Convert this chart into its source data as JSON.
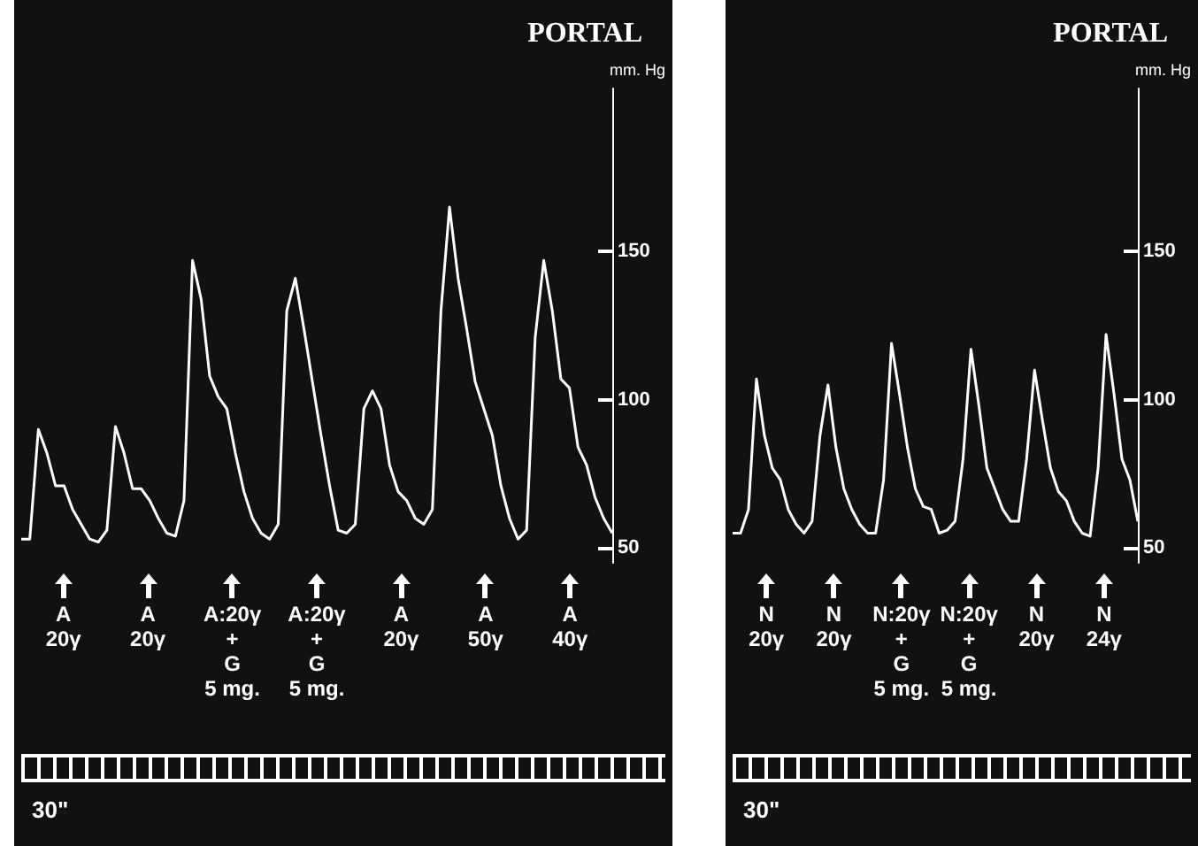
{
  "chart_data": [
    {
      "type": "line",
      "title": "PORTAL",
      "ylabel": "mm. Hg",
      "color": "#ffffff",
      "ylim": [
        45,
        205
      ],
      "yticks": [
        50,
        100,
        150
      ],
      "tick_labels": "y",
      "categories": [
        null,
        null,
        null,
        null,
        null,
        null,
        null,
        null,
        null,
        null,
        null,
        null,
        null,
        null,
        null,
        null,
        null,
        null,
        null,
        null,
        null,
        null,
        null,
        null,
        null,
        null,
        null,
        null,
        null,
        null,
        null,
        null,
        null,
        null,
        null,
        null,
        null,
        null,
        null,
        null,
        null,
        null,
        null,
        null,
        null,
        null,
        null,
        null,
        null,
        null,
        null,
        null,
        null,
        null,
        null,
        null,
        null,
        null,
        null,
        null,
        null,
        null,
        null,
        null,
        null,
        null,
        null,
        null,
        null,
        null
      ],
      "values": [
        53,
        53,
        90,
        82,
        71,
        71,
        63,
        58,
        53,
        52,
        56,
        91,
        82,
        70,
        70,
        66,
        60,
        55,
        54,
        66,
        147,
        134,
        108,
        101,
        97,
        82,
        69,
        60,
        55,
        53,
        58,
        130,
        141,
        124,
        106,
        88,
        71,
        56,
        55,
        58,
        97,
        103,
        97,
        78,
        69,
        66,
        60,
        58,
        63,
        130,
        165,
        141,
        124,
        106,
        97,
        88,
        71,
        60,
        53,
        56,
        121,
        147,
        130,
        107,
        104,
        84,
        78,
        67,
        60,
        55
      ],
      "annotations": [
        "A\n20γ",
        "A\n20γ",
        "A:20γ\n+\nG\n5 mg.",
        "A:20γ\n+\nG\n5 mg.",
        "A\n20γ",
        "A\n50γ",
        "A\n40γ",
        "30\""
      ]
    },
    {
      "type": "line",
      "title": "PORTAL",
      "ylabel": "mm. Hg",
      "color": "#ffffff",
      "ylim": [
        45,
        205
      ],
      "yticks": [
        50,
        100,
        150
      ],
      "tick_labels": "y",
      "categories": [
        null,
        null,
        null,
        null,
        null,
        null,
        null,
        null,
        null,
        null,
        null,
        null,
        null,
        null,
        null,
        null,
        null,
        null,
        null,
        null,
        null,
        null,
        null,
        null,
        null,
        null,
        null,
        null,
        null,
        null,
        null,
        null,
        null,
        null,
        null,
        null,
        null,
        null,
        null,
        null,
        null,
        null,
        null,
        null,
        null,
        null,
        null,
        null,
        null,
        null,
        null,
        null
      ],
      "values": [
        55,
        55,
        63,
        107,
        88,
        77,
        73,
        63,
        58,
        55,
        59,
        88,
        105,
        84,
        70,
        63,
        58,
        55,
        55,
        73,
        119,
        102,
        84,
        70,
        64,
        63,
        55,
        56,
        59,
        80,
        117,
        98,
        77,
        70,
        63,
        59,
        59,
        80,
        110,
        93,
        77,
        69,
        66,
        59,
        55,
        54,
        77,
        122,
        102,
        80,
        73,
        59
      ],
      "annotations": [
        "N\n20γ",
        "N\n20γ",
        "N:20γ\n+\nG\n5 mg.",
        "N:20γ\n+\nG\n5 mg.",
        "N\n20γ",
        "N\n24γ",
        "30\""
      ]
    }
  ]
}
